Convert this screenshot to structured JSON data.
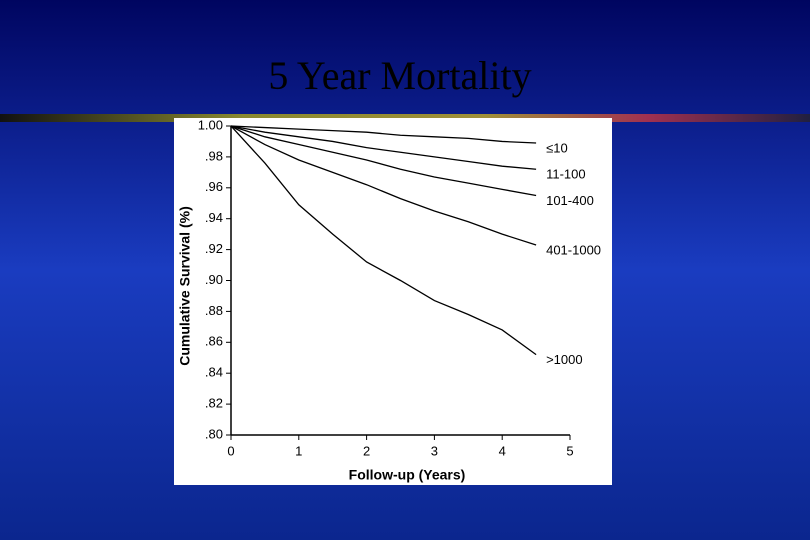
{
  "chart_data": {
    "type": "line",
    "title": "5 Year Mortality",
    "xlabel": "Follow-up (Years)",
    "ylabel": "Cumulative Survival (%)",
    "x": [
      0,
      0.5,
      1,
      1.5,
      2,
      2.5,
      3,
      3.5,
      4,
      4.5
    ],
    "series": [
      {
        "name": "≤10",
        "color": "#000000",
        "values": [
          1,
          0.999,
          0.998,
          0.997,
          0.996,
          0.994,
          0.993,
          0.992,
          0.99,
          0.989
        ]
      },
      {
        "name": "11-100",
        "color": "#000000",
        "values": [
          1,
          0.996,
          0.993,
          0.99,
          0.986,
          0.983,
          0.98,
          0.977,
          0.974,
          0.972
        ]
      },
      {
        "name": "101-400",
        "color": "#000000",
        "values": [
          1,
          0.993,
          0.988,
          0.983,
          0.978,
          0.972,
          0.967,
          0.963,
          0.959,
          0.955
        ]
      },
      {
        "name": "401-1000",
        "color": "#000000",
        "values": [
          1,
          0.988,
          0.978,
          0.97,
          0.962,
          0.953,
          0.945,
          0.938,
          0.93,
          0.923
        ]
      },
      {
        "name": ">1000",
        "color": "#000000",
        "values": [
          1,
          0.976,
          0.949,
          0.93,
          0.912,
          0.9,
          0.887,
          0.878,
          0.868,
          0.852
        ]
      }
    ],
    "xlim": [
      0,
      5
    ],
    "xticks": [
      0,
      1,
      2,
      3,
      4,
      5
    ],
    "ylim": [
      0.8,
      1.0
    ],
    "yticks": [
      {
        "value": 0.8,
        "label": ".80"
      },
      {
        "value": 0.82,
        "label": ".82"
      },
      {
        "value": 0.84,
        "label": ".84"
      },
      {
        "value": 0.86,
        "label": ".86"
      },
      {
        "value": 0.88,
        "label": ".88"
      },
      {
        "value": 0.9,
        "label": ".90"
      },
      {
        "value": 0.92,
        "label": ".92"
      },
      {
        "value": 0.94,
        "label": ".94"
      },
      {
        "value": 0.96,
        "label": ".96"
      },
      {
        "value": 0.98,
        "label": ".98"
      },
      {
        "value": 1.0,
        "label": "1.00"
      }
    ],
    "grid": false
  }
}
